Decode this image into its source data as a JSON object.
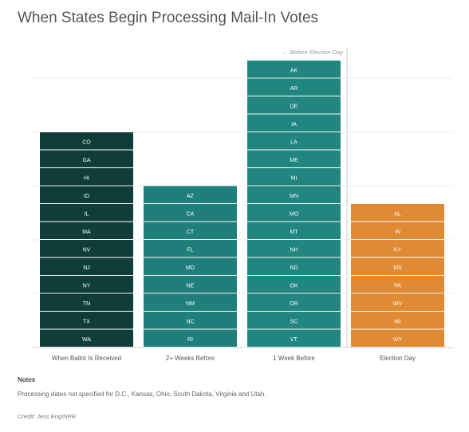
{
  "title": "When States Begin Processing Mail-In Votes",
  "chart_data": {
    "type": "bar",
    "subtype": "stacked-unit-columns",
    "title": "When States Begin Processing Mail-In Votes",
    "xlabel": "",
    "ylabel": "",
    "grid": true,
    "annotation": "← Before Election Day",
    "categories": [
      "When Ballot Is Received",
      "2+ Weeks Before",
      "1 Week Before",
      "Election Day"
    ],
    "values": [
      12,
      9,
      16,
      8
    ],
    "columns": [
      {
        "category": "When Ballot Is Received",
        "color": "#0f3d3a",
        "states": [
          "CO",
          "GA",
          "HI",
          "ID",
          "IL",
          "MA",
          "NV",
          "NJ",
          "NY",
          "TN",
          "TX",
          "WA"
        ]
      },
      {
        "category": "2+ Weeks Before",
        "color": "#1f7f7a",
        "states": [
          "AZ",
          "CA",
          "CT",
          "FL",
          "MD",
          "NE",
          "NM",
          "NC",
          "RI"
        ]
      },
      {
        "category": "1 Week Before",
        "color": "#218580",
        "states": [
          "AK",
          "AR",
          "DE",
          "IA",
          "LA",
          "ME",
          "MI",
          "MN",
          "MO",
          "MT",
          "NH",
          "ND",
          "OK",
          "OR",
          "SC",
          "VT"
        ]
      },
      {
        "category": "Election Day",
        "color": "#e08a33",
        "states": [
          "AL",
          "IN",
          "KY",
          "MS",
          "PA",
          "WV",
          "WI",
          "WY"
        ]
      }
    ]
  },
  "notes": {
    "heading": "Notes",
    "text": "Processing dates not specified for D.C., Kansas, Ohio, South Dakota, Virginia and Utah."
  },
  "credit": "Credit: Jess Eng/NPR"
}
